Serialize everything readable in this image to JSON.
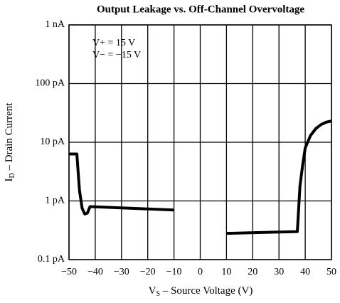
{
  "chart_data": {
    "type": "line",
    "title": "Output Leakage vs. Off-Channel Overvoltage",
    "xlabel": [
      "V",
      "S",
      " – Source Voltage (V)"
    ],
    "ylabel": [
      "I",
      "D",
      " – Drain Current"
    ],
    "annotations": [
      "V+ = 15 V",
      "V− = −15 V"
    ],
    "x": [
      -50,
      -47,
      -46,
      -45,
      -44,
      -43,
      -42,
      -10,
      0,
      10,
      37,
      38,
      39,
      40,
      42,
      44,
      46,
      48,
      50
    ],
    "series": [
      {
        "name": "ID",
        "color": "#000000",
        "values": [
          6.3,
          6.3,
          1.5,
          0.75,
          0.6,
          0.62,
          0.8,
          0.7,
          null,
          0.28,
          0.3,
          1.8,
          4,
          8,
          13,
          17,
          20,
          22,
          23
        ]
      }
    ],
    "xlim": [
      -50,
      50
    ],
    "xticks": [
      {
        "value": -50,
        "label": "−50"
      },
      {
        "value": -40,
        "label": "−40"
      },
      {
        "value": -30,
        "label": "−30"
      },
      {
        "value": -20,
        "label": "−20"
      },
      {
        "value": -10,
        "label": "−10"
      },
      0,
      10,
      20,
      30,
      40,
      50
    ],
    "ylim": [
      0.1,
      1000
    ],
    "log_y": true,
    "yticks": [
      {
        "value": 0.1,
        "label": "0.1 pA"
      },
      {
        "value": 1,
        "label": "1 pA"
      },
      {
        "value": 10,
        "label": "10 pA"
      },
      {
        "value": 100,
        "label": "100 pA"
      },
      {
        "value": 1000,
        "label": "1 nA"
      }
    ],
    "grid": true
  }
}
